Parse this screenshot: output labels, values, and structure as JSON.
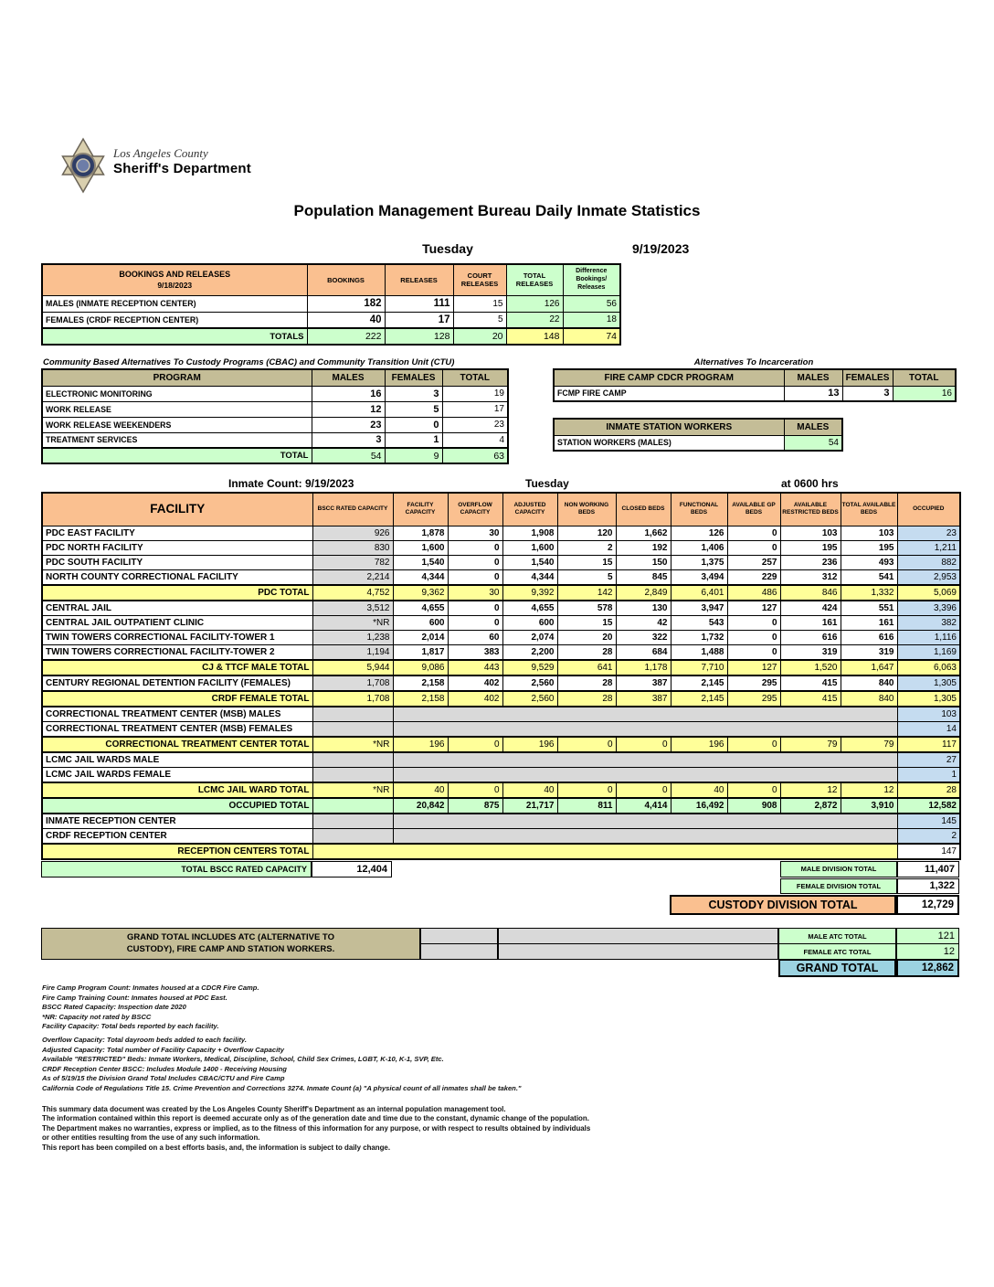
{
  "header": {
    "agency_line1": "Los Angeles County",
    "agency_line2": "Sheriff's Department",
    "title": "Population Management Bureau Daily Inmate Statistics",
    "day": "Tuesday",
    "date": "9/19/2023"
  },
  "bookings": {
    "title_line1": "BOOKINGS AND RELEASES",
    "title_line2": "9/18/2023",
    "columns": [
      "BOOKINGS",
      "RELEASES",
      "COURT RELEASES",
      "TOTAL RELEASES",
      "Difference Bookings/ Releases"
    ],
    "rows": [
      {
        "label": "MALES (INMATE RECEPTION CENTER)",
        "values": [
          "182",
          "111",
          "15",
          "126",
          "56"
        ]
      },
      {
        "label": "FEMALES (CRDF RECEPTION CENTER)",
        "values": [
          "40",
          "17",
          "5",
          "22",
          "18"
        ]
      }
    ],
    "totals": {
      "label": "TOTALS",
      "values": [
        "222",
        "128",
        "20",
        "148",
        "74"
      ]
    }
  },
  "cbac": {
    "title": "Community Based Alternatives To Custody Programs (CBAC) and Community Transition Unit (CTU)",
    "columns": [
      "PROGRAM",
      "MALES",
      "FEMALES",
      "TOTAL"
    ],
    "rows": [
      {
        "label": "ELECTRONIC MONITORING",
        "values": [
          "16",
          "3",
          "19"
        ]
      },
      {
        "label": "WORK RELEASE",
        "values": [
          "12",
          "5",
          "17"
        ]
      },
      {
        "label": "WORK RELEASE WEEKENDERS",
        "values": [
          "23",
          "0",
          "23"
        ]
      },
      {
        "label": "TREATMENT SERVICES",
        "values": [
          "3",
          "1",
          "4"
        ]
      }
    ],
    "totals": {
      "label": "TOTAL",
      "values": [
        "54",
        "9",
        "63"
      ]
    }
  },
  "ati": {
    "title": "Alternatives To Incarceration",
    "fire_camp": {
      "columns": [
        "FIRE CAMP CDCR PROGRAM",
        "MALES",
        "FEMALES",
        "TOTAL"
      ],
      "row": {
        "label": "FCMP FIRE CAMP",
        "values": [
          "13",
          "3",
          "16"
        ]
      }
    },
    "station_workers": {
      "columns": [
        "INMATE STATION WORKERS",
        "MALES"
      ],
      "row": {
        "label": "STATION WORKERS (MALES)",
        "value": "54"
      }
    }
  },
  "inmate_count": {
    "left": "Inmate Count: 9/19/2023",
    "center": "Tuesday",
    "right": "at 0600 hrs"
  },
  "facility_table": {
    "columns": [
      "FACILITY",
      "BSCC RATED CAPACITY",
      "FACILITY CAPACITY",
      "OVERFLOW CAPACITY",
      "ADJUSTED CAPACITY",
      "NON WORKING BEDS",
      "CLOSED BEDS",
      "FUNCTIONAL BEDS",
      "AVAILABLE GP BEDS",
      "AVAILABLE RESTRICTED BEDS",
      "TOTAL AVAILABLE BEDS",
      "OCCUPIED"
    ],
    "rows": [
      {
        "type": "data",
        "label": "PDC EAST FACILITY",
        "bscc": "926",
        "values": [
          "1,878",
          "30",
          "1,908",
          "120",
          "1,662",
          "126",
          "0",
          "103",
          "103"
        ],
        "occupied": "23"
      },
      {
        "type": "data",
        "label": "PDC NORTH FACILITY",
        "bscc": "830",
        "values": [
          "1,600",
          "0",
          "1,600",
          "2",
          "192",
          "1,406",
          "0",
          "195",
          "195"
        ],
        "occupied": "1,211"
      },
      {
        "type": "data",
        "label": "PDC SOUTH FACILITY",
        "bscc": "782",
        "values": [
          "1,540",
          "0",
          "1,540",
          "15",
          "150",
          "1,375",
          "257",
          "236",
          "493"
        ],
        "occupied": "882"
      },
      {
        "type": "data",
        "label": "NORTH COUNTY CORRECTIONAL FACILITY",
        "bscc": "2,214",
        "values": [
          "4,344",
          "0",
          "4,344",
          "5",
          "845",
          "3,494",
          "229",
          "312",
          "541"
        ],
        "occupied": "2,953"
      },
      {
        "type": "total",
        "label": "PDC TOTAL",
        "bscc": "4,752",
        "values": [
          "9,362",
          "30",
          "9,392",
          "142",
          "2,849",
          "6,401",
          "486",
          "846",
          "1,332"
        ],
        "occupied": "5,069"
      },
      {
        "type": "data",
        "label": "CENTRAL JAIL",
        "bscc": "3,512",
        "values": [
          "4,655",
          "0",
          "4,655",
          "578",
          "130",
          "3,947",
          "127",
          "424",
          "551"
        ],
        "occupied": "3,396"
      },
      {
        "type": "data",
        "label": "CENTRAL JAIL OUTPATIENT CLINIC",
        "bscc": "*NR",
        "values": [
          "600",
          "0",
          "600",
          "15",
          "42",
          "543",
          "0",
          "161",
          "161"
        ],
        "occupied": "382"
      },
      {
        "type": "data",
        "label": "TWIN TOWERS CORRECTIONAL FACILITY-TOWER 1",
        "bscc": "1,238",
        "values": [
          "2,014",
          "60",
          "2,074",
          "20",
          "322",
          "1,732",
          "0",
          "616",
          "616"
        ],
        "occupied": "1,116"
      },
      {
        "type": "data",
        "label": "TWIN TOWERS CORRECTIONAL FACILITY-TOWER 2",
        "bscc": "1,194",
        "values": [
          "1,817",
          "383",
          "2,200",
          "28",
          "684",
          "1,488",
          "0",
          "319",
          "319"
        ],
        "occupied": "1,169"
      },
      {
        "type": "total",
        "label": "CJ & TTCF MALE TOTAL",
        "bscc": "5,944",
        "values": [
          "9,086",
          "443",
          "9,529",
          "641",
          "1,178",
          "7,710",
          "127",
          "1,520",
          "1,647"
        ],
        "occupied": "6,063"
      },
      {
        "type": "data",
        "label": "CENTURY REGIONAL DETENTION FACILITY (FEMALES)",
        "bscc": "1,708",
        "values": [
          "2,158",
          "402",
          "2,560",
          "28",
          "387",
          "2,145",
          "295",
          "415",
          "840"
        ],
        "occupied": "1,305"
      },
      {
        "type": "total",
        "label": "CRDF FEMALE TOTAL",
        "bscc": "1,708",
        "values": [
          "2,158",
          "402",
          "2,560",
          "28",
          "387",
          "2,145",
          "295",
          "415",
          "840"
        ],
        "occupied": "1,305"
      },
      {
        "type": "gray",
        "label": "CORRECTIONAL TREATMENT CENTER (MSB) MALES",
        "occupied": "103"
      },
      {
        "type": "gray",
        "label": "CORRECTIONAL TREATMENT CENTER (MSB) FEMALES",
        "occupied": "14"
      },
      {
        "type": "total",
        "label": "CORRECTIONAL TREATMENT CENTER  TOTAL",
        "bscc": "*NR",
        "values": [
          "196",
          "0",
          "196",
          "0",
          "0",
          "196",
          "0",
          "79",
          "79"
        ],
        "occupied": "117"
      },
      {
        "type": "gray",
        "label": "LCMC JAIL WARDS MALE",
        "occupied": "27"
      },
      {
        "type": "gray",
        "label": "LCMC JAIL WARDS FEMALE",
        "occupied": "1"
      },
      {
        "type": "total",
        "label": "LCMC JAIL WARD TOTAL",
        "bscc": "*NR",
        "values": [
          "40",
          "0",
          "40",
          "0",
          "0",
          "40",
          "0",
          "12",
          "12"
        ],
        "occupied": "28"
      },
      {
        "type": "occtotal",
        "label": "OCCUPIED TOTAL",
        "bscc": "",
        "values": [
          "20,842",
          "875",
          "21,717",
          "811",
          "4,414",
          "16,492",
          "908",
          "2,872",
          "3,910"
        ],
        "occupied": "12,582"
      },
      {
        "type": "gray",
        "label": "INMATE RECEPTION CENTER",
        "occupied": "145"
      },
      {
        "type": "gray",
        "label": "CRDF RECEPTION CENTER",
        "occupied": "2"
      },
      {
        "type": "rectotal",
        "label": "RECEPTION CENTERS TOTAL",
        "occupied": "147"
      }
    ]
  },
  "summary": {
    "total_bscc": {
      "label": "TOTAL BSCC RATED CAPACITY",
      "value": "12,404"
    },
    "male_division": {
      "label": "MALE DIVISION TOTAL",
      "value": "11,407"
    },
    "female_division": {
      "label": "FEMALE DIVISION TOTAL",
      "value": "1,322"
    },
    "custody_division": {
      "label": "CUSTODY DIVISION TOTAL",
      "value": "12,729"
    }
  },
  "grand": {
    "note_line1": "GRAND TOTAL INCLUDES ATC (ALTERNATIVE TO",
    "note_line2": "CUSTODY), FIRE CAMP AND STATION WORKERS.",
    "male_atc": {
      "label": "MALE ATC TOTAL",
      "value": "121"
    },
    "female_atc": {
      "label": "FEMALE ATC TOTAL",
      "value": "12"
    },
    "grand_total": {
      "label": "GRAND TOTAL",
      "value": "12,862"
    }
  },
  "footnotes": [
    "Fire Camp Program Count: Inmates housed at a CDCR Fire Camp.",
    "Fire Camp Training Count: Inmates housed at PDC East.",
    "BSCC Rated Capacity: Inspection date 2020",
    "*NR: Capacity not rated by BSCC",
    "Facility Capacity: Total beds reported by each facility.",
    "Overflow Capacity: Total dayroom beds added to each facility.",
    "Adjusted Capacity: Total number of Facility Capacity + Overflow Capacity",
    "Available \"RESTRICTED\" Beds: Inmate Workers, Medical, Discipline, School, Child Sex Crimes,  LGBT, K-10, K-1, SVP, Etc.",
    "CRDF Reception Center BSCC: Includes Module 1400 - Receiving Housing",
    "As of 5/19/15 the Division Grand Total Includes CBAC/CTU and Fire Camp",
    "California Code of Regulations Title 15. Crime Prevention and Corrections 3274. Inmate Count (a) \"A physical count of all inmates shall be taken.\""
  ],
  "disclaimer": [
    "This summary data document was created by the Los Angeles County Sheriff's Department as an internal population management tool.",
    "The information contained within this report is deemed accurate only as of the generation date and time due to the constant, dynamic change of the population.",
    "The Department makes no warranties, express or implied, as to the fitness of this information for any purpose, or with respect to results obtained by individuals",
    "or other entities resulting from the use of any such information.",
    "This report has been compiled on a best efforts basis, and, the information is subject to daily change."
  ]
}
